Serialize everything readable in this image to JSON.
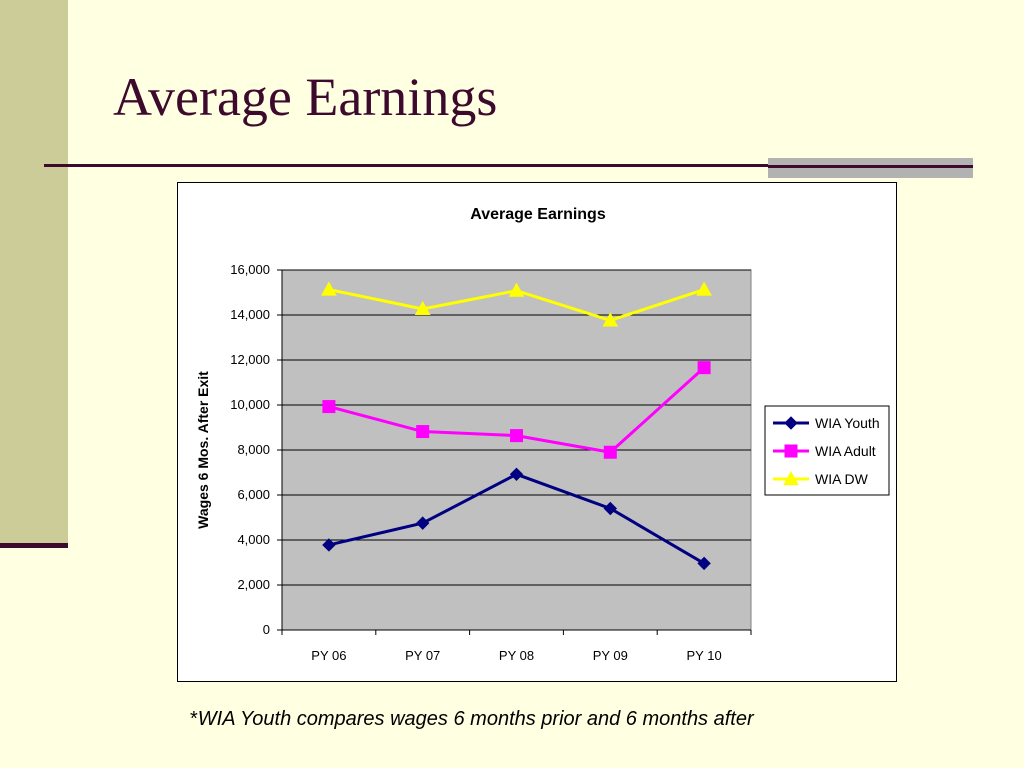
{
  "slide": {
    "title": "Average Earnings",
    "footnote_prefix": "*",
    "footnote": "WIA Youth compares wages 6 months prior and 6 months after"
  },
  "chart_data": {
    "type": "line",
    "title": "Average Earnings",
    "xlabel": "",
    "ylabel": "Wages 6 Mos. After Exit",
    "categories": [
      "PY 06",
      "PY 07",
      "PY 08",
      "PY 09",
      "PY 10"
    ],
    "ylim": [
      0,
      16000
    ],
    "yticks": [
      0,
      2000,
      4000,
      6000,
      8000,
      10000,
      12000,
      14000,
      16000
    ],
    "ytick_labels": [
      "0",
      "2,000",
      "4,000",
      "6,000",
      "8,000",
      "10,000",
      "12,000",
      "14,000",
      "16,000"
    ],
    "grid": true,
    "plot_background": "#C0C0C0",
    "legend_position": "right",
    "series": [
      {
        "name": "WIA Youth",
        "values": [
          3780,
          4750,
          6920,
          5400,
          2960
        ],
        "color": "#000080",
        "marker": "diamond"
      },
      {
        "name": "WIA Adult",
        "values": [
          9930,
          8820,
          8640,
          7900,
          11660
        ],
        "color": "#FF00FF",
        "marker": "square"
      },
      {
        "name": "WIA DW",
        "values": [
          15130,
          14270,
          15080,
          13760,
          15130
        ],
        "color": "#FFFF00",
        "marker": "triangle"
      }
    ]
  }
}
